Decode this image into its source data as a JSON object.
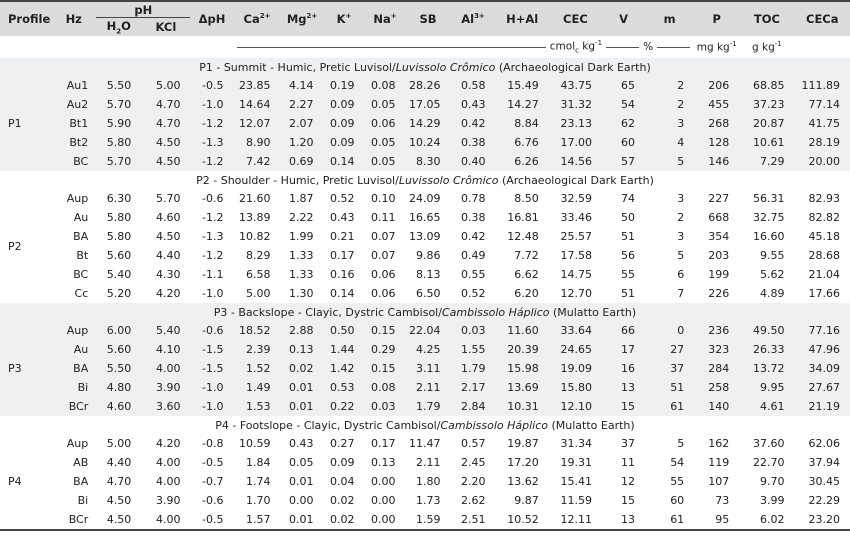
{
  "headers": {
    "profile": "Profile",
    "hz": "Hz",
    "ph": "pH",
    "h2o": "H",
    "h2o_sub": "2",
    "h2o_end": "O",
    "kcl": "KCl",
    "dph": "ΔpH",
    "ca": "Ca",
    "ca_sup": "2+",
    "mg": "Mg",
    "mg_sup": "2+",
    "k": "K",
    "k_sup": "+",
    "na": "Na",
    "na_sup": "+",
    "sb": "SB",
    "al": "Al",
    "al_sup": "3+",
    "hal": "H+Al",
    "cec": "CEC",
    "v": "V",
    "m": "m",
    "p": "P",
    "toc": "TOC",
    "ceca": "CECa"
  },
  "units": {
    "cmolc": "cmol",
    "cmolc_sub": "c",
    "cmolc_end": " kg",
    "cmolc_sup": "-1",
    "percent": "%",
    "mgkg": "mg kg",
    "mgkg_sup": "-1",
    "gkg": "g kg",
    "gkg_sup": "-1"
  },
  "profiles": [
    {
      "id": "P1",
      "title_pre": "P1 - Summit - Humic, Pretic Luvisol/",
      "title_it": "Luvissolo Crômico",
      "title_post": " (Archaeological Dark Earth)",
      "rows": [
        [
          "Au1",
          "5.50",
          "5.00",
          "-0.5",
          "23.85",
          "4.14",
          "0.19",
          "0.08",
          "28.26",
          "0.58",
          "15.49",
          "43.75",
          "65",
          "2",
          "206",
          "68.85",
          "111.89"
        ],
        [
          "Au2",
          "5.70",
          "4.70",
          "-1.0",
          "14.64",
          "2.27",
          "0.09",
          "0.05",
          "17.05",
          "0.43",
          "14.27",
          "31.32",
          "54",
          "2",
          "455",
          "37.23",
          "77.14"
        ],
        [
          "Bt1",
          "5.90",
          "4.70",
          "-1.2",
          "12.07",
          "2.07",
          "0.09",
          "0.06",
          "14.29",
          "0.42",
          "8.84",
          "23.13",
          "62",
          "3",
          "268",
          "20.87",
          "41.75"
        ],
        [
          "Bt2",
          "5.80",
          "4.50",
          "-1.3",
          "8.90",
          "1.20",
          "0.09",
          "0.05",
          "10.24",
          "0.38",
          "6.76",
          "17.00",
          "60",
          "4",
          "128",
          "10.61",
          "28.19"
        ],
        [
          "BC",
          "5.70",
          "4.50",
          "-1.2",
          "7.42",
          "0.69",
          "0.14",
          "0.05",
          "8.30",
          "0.40",
          "6.26",
          "14.56",
          "57",
          "5",
          "146",
          "7.29",
          "20.00"
        ]
      ]
    },
    {
      "id": "P2",
      "title_pre": "P2 - Shoulder - Humic, Pretic Luvisol/",
      "title_it": "Luvissolo Crômico",
      "title_post": " (Archaeological Dark Earth)",
      "rows": [
        [
          "Aup",
          "6.30",
          "5.70",
          "-0.6",
          "21.60",
          "1.87",
          "0.52",
          "0.10",
          "24.09",
          "0.78",
          "8.50",
          "32.59",
          "74",
          "3",
          "227",
          "56.31",
          "82.93"
        ],
        [
          "Au",
          "5.80",
          "4.60",
          "-1.2",
          "13.89",
          "2.22",
          "0.43",
          "0.11",
          "16.65",
          "0.38",
          "16.81",
          "33.46",
          "50",
          "2",
          "668",
          "32.75",
          "82.82"
        ],
        [
          "BA",
          "5.80",
          "4.50",
          "-1.3",
          "10.82",
          "1.99",
          "0.21",
          "0.07",
          "13.09",
          "0.42",
          "12.48",
          "25.57",
          "51",
          "3",
          "354",
          "16.60",
          "45.18"
        ],
        [
          "Bt",
          "5.60",
          "4.40",
          "-1.2",
          "8.29",
          "1.33",
          "0.17",
          "0.07",
          "9.86",
          "0.49",
          "7.72",
          "17.58",
          "56",
          "5",
          "203",
          "9.55",
          "28.68"
        ],
        [
          "BC",
          "5.40",
          "4.30",
          "-1.1",
          "6.58",
          "1.33",
          "0.16",
          "0.06",
          "8.13",
          "0.55",
          "6.62",
          "14.75",
          "55",
          "6",
          "199",
          "5.62",
          "21.04"
        ],
        [
          "Cc",
          "5.20",
          "4.20",
          "-1.0",
          "5.00",
          "1.30",
          "0.14",
          "0.06",
          "6.50",
          "0.52",
          "6.20",
          "12.70",
          "51",
          "7",
          "226",
          "4.89",
          "17.66"
        ]
      ]
    },
    {
      "id": "P3",
      "title_pre": "P3 - Backslope - Clayic, Dystric Cambisol/",
      "title_it": "Cambissolo Háplico",
      "title_post": " (Mulatto Earth)",
      "rows": [
        [
          "Aup",
          "6.00",
          "5.40",
          "-0.6",
          "18.52",
          "2.88",
          "0.50",
          "0.15",
          "22.04",
          "0.03",
          "11.60",
          "33.64",
          "66",
          "0",
          "236",
          "49.50",
          "77.16"
        ],
        [
          "Au",
          "5.60",
          "4.10",
          "-1.5",
          "2.39",
          "0.13",
          "1.44",
          "0.29",
          "4.25",
          "1.55",
          "20.39",
          "24.65",
          "17",
          "27",
          "323",
          "26.33",
          "47.96"
        ],
        [
          "BA",
          "5.50",
          "4.00",
          "-1.5",
          "1.52",
          "0.02",
          "1.42",
          "0.15",
          "3.11",
          "1.79",
          "15.98",
          "19.09",
          "16",
          "37",
          "284",
          "13.72",
          "34.09"
        ],
        [
          "Bi",
          "4.80",
          "3.90",
          "-1.0",
          "1.49",
          "0.01",
          "0.53",
          "0.08",
          "2.11",
          "2.17",
          "13.69",
          "15.80",
          "13",
          "51",
          "258",
          "9.95",
          "27.67"
        ],
        [
          "BCr",
          "4.60",
          "3.60",
          "-1.0",
          "1.53",
          "0.01",
          "0.22",
          "0.03",
          "1.79",
          "2.84",
          "10.31",
          "12.10",
          "15",
          "61",
          "140",
          "4.61",
          "21.19"
        ]
      ]
    },
    {
      "id": "P4",
      "title_pre": "P4 - Footslope - Clayic, Dystric Cambisol/",
      "title_it": "Cambissolo Háplico",
      "title_post": " (Mulatto Earth)",
      "rows": [
        [
          "Aup",
          "5.00",
          "4.20",
          "-0.8",
          "10.59",
          "0.43",
          "0.27",
          "0.17",
          "11.47",
          "0.57",
          "19.87",
          "31.34",
          "37",
          "5",
          "162",
          "37.60",
          "62.06"
        ],
        [
          "AB",
          "4.40",
          "4.00",
          "-0.5",
          "1.84",
          "0.05",
          "0.09",
          "0.13",
          "2.11",
          "2.45",
          "17.20",
          "19.31",
          "11",
          "54",
          "119",
          "22.70",
          "37.94"
        ],
        [
          "BA",
          "4.70",
          "4.00",
          "-0.7",
          "1.74",
          "0.01",
          "0.04",
          "0.00",
          "1.80",
          "2.20",
          "13.62",
          "15.41",
          "12",
          "55",
          "107",
          "9.70",
          "30.45"
        ],
        [
          "Bi",
          "4.50",
          "3.90",
          "-0.6",
          "1.70",
          "0.00",
          "0.02",
          "0.00",
          "1.73",
          "2.62",
          "9.87",
          "11.59",
          "15",
          "60",
          "73",
          "3.99",
          "22.29"
        ],
        [
          "BCr",
          "4.50",
          "4.00",
          "-0.5",
          "1.57",
          "0.01",
          "0.02",
          "0.00",
          "1.59",
          "2.51",
          "10.52",
          "12.11",
          "13",
          "61",
          "95",
          "6.02",
          "23.20"
        ]
      ]
    }
  ]
}
